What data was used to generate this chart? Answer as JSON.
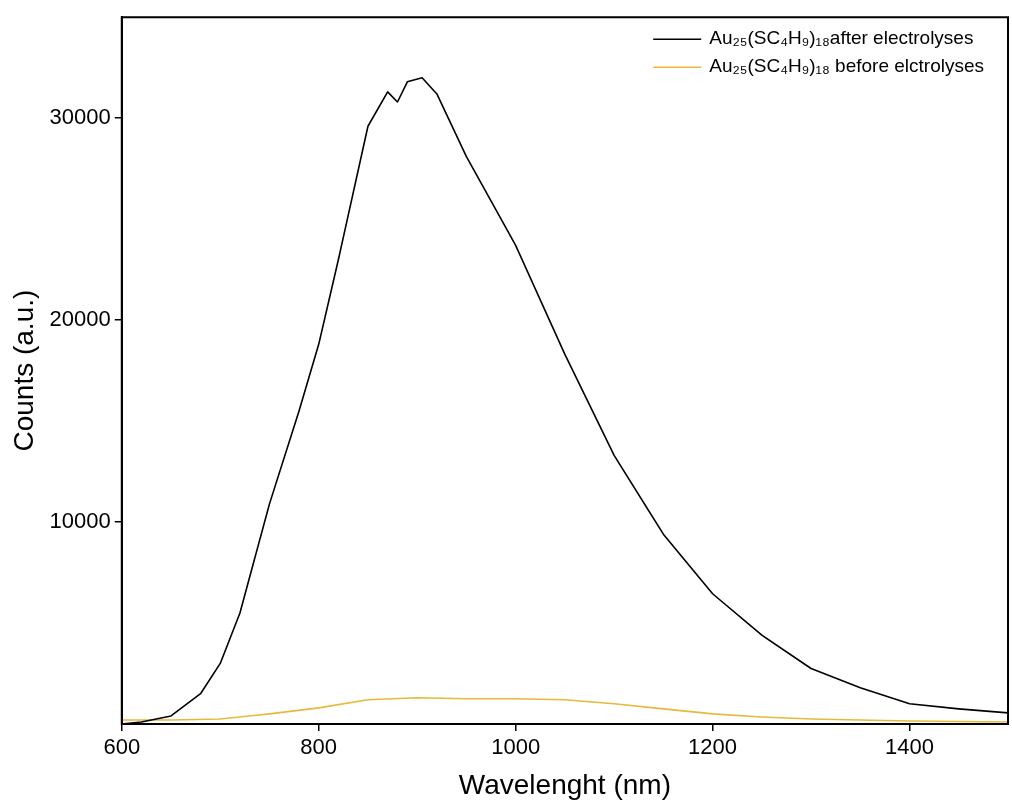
{
  "chart_data": {
    "type": "line",
    "xlabel": "Wavelenght (nm)",
    "ylabel": "Counts (a.u.)",
    "xlim": [
      600,
      1500
    ],
    "ylim": [
      0,
      35000
    ],
    "xticks": [
      600,
      800,
      1000,
      1200,
      1400
    ],
    "yticks": [
      10000,
      20000,
      30000
    ],
    "grid": false,
    "legend": "top right",
    "marker": "none",
    "line_style": "solid",
    "series": [
      {
        "name": "Au₂₅(SC₄H₉)₁₈after electrolyses",
        "color": "#000000",
        "x": [
          600,
          620,
          650,
          680,
          700,
          720,
          750,
          780,
          800,
          820,
          850,
          870,
          880,
          890,
          905,
          920,
          950,
          1000,
          1050,
          1100,
          1150,
          1200,
          1250,
          1300,
          1350,
          1400,
          1450,
          1500
        ],
        "values": [
          0,
          100,
          400,
          1500,
          3000,
          5500,
          10900,
          15500,
          18800,
          23000,
          29600,
          31300,
          30800,
          31800,
          32000,
          31200,
          28100,
          23700,
          18300,
          13300,
          9400,
          6450,
          4400,
          2750,
          1800,
          1000,
          750,
          550
        ]
      },
      {
        "name": "Au₂₅(SC₄H₉)₁₈ before elctrolyses",
        "color": "#e6b83c",
        "x": [
          600,
          650,
          700,
          750,
          800,
          850,
          900,
          950,
          1000,
          1050,
          1100,
          1150,
          1200,
          1250,
          1300,
          1400,
          1500
        ],
        "values": [
          200,
          200,
          250,
          500,
          800,
          1200,
          1300,
          1250,
          1250,
          1200,
          1000,
          750,
          500,
          350,
          250,
          150,
          100
        ]
      }
    ]
  }
}
